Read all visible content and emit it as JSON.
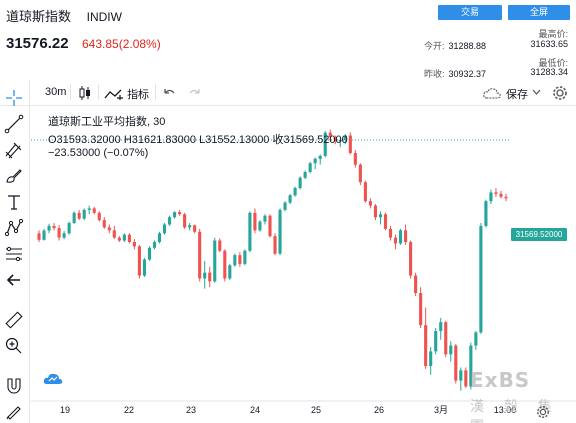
{
  "header": {
    "name": "道琼斯指数",
    "symbol": "INDIW",
    "price": "31576.22",
    "change": "643.85(2.08%)",
    "trade_button": "交易",
    "fullscreen_button": "全屏",
    "stats": {
      "open_label": "今开:",
      "open_value": "31288.88",
      "prev_close_label": "昨收:",
      "prev_close_value": "30932.37",
      "high_label": "最高价:",
      "high_value": "31633.65",
      "low_label": "最低价:",
      "low_value": "31283.34"
    }
  },
  "toolbar": {
    "interval": "30m",
    "indicators_label": "指标",
    "save_label": "保存"
  },
  "legend": {
    "line1": "道琼斯工业平均指数, 30",
    "line2": "O31593.32000  H31621.83000  L31552.13000  收31569.52000",
    "line3": "−23.53000 (−0.07%)"
  },
  "price_tag": "31569.52000",
  "x_labels": [
    "19",
    "22",
    "23",
    "24",
    "25",
    "26",
    "3月",
    "13:00"
  ],
  "watermark": {
    "line1": "ExBS",
    "line2": "漢 穀 集 團"
  },
  "colors": {
    "up": "#26a69a",
    "down": "#ef5350",
    "accent": "#2f8fe8"
  },
  "chart_data": {
    "type": "candlestick",
    "current_price": 31569.52,
    "candles": [
      [
        30929,
        30950,
        30870,
        30885
      ],
      [
        30885,
        30960,
        30880,
        30948
      ],
      [
        30948,
        30995,
        30930,
        30980
      ],
      [
        30980,
        31000,
        30950,
        30965
      ],
      [
        30965,
        30985,
        30880,
        30900
      ],
      [
        30900,
        30945,
        30890,
        30930
      ],
      [
        30930,
        31010,
        30920,
        31000
      ],
      [
        31000,
        31080,
        30995,
        31070
      ],
      [
        31070,
        31090,
        31020,
        31030
      ],
      [
        31030,
        31100,
        31020,
        31090
      ],
      [
        31090,
        31120,
        31060,
        31100
      ],
      [
        31100,
        31110,
        31060,
        31070
      ],
      [
        31070,
        31080,
        31010,
        31020
      ],
      [
        31020,
        31040,
        30960,
        30970
      ],
      [
        30970,
        30990,
        30930,
        30950
      ],
      [
        30950,
        30980,
        30890,
        30900
      ],
      [
        30900,
        30910,
        30870,
        30880
      ],
      [
        30880,
        30930,
        30870,
        30920
      ],
      [
        30920,
        30930,
        30860,
        30870
      ],
      [
        30870,
        30890,
        30820,
        30840
      ],
      [
        30840,
        30850,
        30620,
        30640
      ],
      [
        30640,
        30760,
        30630,
        30750
      ],
      [
        30750,
        30840,
        30740,
        30830
      ],
      [
        30830,
        30880,
        30820,
        30870
      ],
      [
        30870,
        30940,
        30860,
        30930
      ],
      [
        30930,
        31000,
        30920,
        30990
      ],
      [
        30990,
        31050,
        30980,
        31040
      ],
      [
        31040,
        31080,
        31030,
        31075
      ],
      [
        31075,
        31090,
        31050,
        31060
      ],
      [
        31060,
        31070,
        30960,
        30970
      ],
      [
        30970,
        31000,
        30950,
        30985
      ],
      [
        30985,
        30990,
        30930,
        30940
      ],
      [
        30940,
        30960,
        30600,
        30620
      ],
      [
        30620,
        30740,
        30550,
        30660
      ],
      [
        30660,
        30700,
        30560,
        30600
      ],
      [
        30600,
        30900,
        30590,
        30880
      ],
      [
        30880,
        30895,
        30800,
        30810
      ],
      [
        30810,
        30820,
        30600,
        30620
      ],
      [
        30620,
        30720,
        30610,
        30710
      ],
      [
        30710,
        30790,
        30700,
        30780
      ],
      [
        30780,
        30800,
        30700,
        30720
      ],
      [
        30720,
        30820,
        30710,
        30810
      ],
      [
        30810,
        31080,
        30800,
        31070
      ],
      [
        31070,
        31100,
        30930,
        30950
      ],
      [
        30950,
        31020,
        30940,
        31010
      ],
      [
        31010,
        31060,
        30990,
        31050
      ],
      [
        31050,
        31060,
        30900,
        30910
      ],
      [
        30910,
        30930,
        30780,
        30790
      ],
      [
        30790,
        31100,
        30780,
        31090
      ],
      [
        31090,
        31150,
        31080,
        31140
      ],
      [
        31140,
        31200,
        31130,
        31190
      ],
      [
        31190,
        31250,
        31180,
        31240
      ],
      [
        31240,
        31320,
        31230,
        31310
      ],
      [
        31310,
        31360,
        31300,
        31350
      ],
      [
        31350,
        31420,
        31340,
        31410
      ],
      [
        31410,
        31450,
        31370,
        31440
      ],
      [
        31440,
        31470,
        31400,
        31460
      ],
      [
        31460,
        31630,
        31450,
        31620
      ],
      [
        31620,
        31640,
        31560,
        31590
      ],
      [
        31590,
        31600,
        31540,
        31560
      ],
      [
        31560,
        31580,
        31520,
        31570
      ],
      [
        31570,
        31610,
        31540,
        31600
      ],
      [
        31600,
        31620,
        31470,
        31480
      ],
      [
        31480,
        31500,
        31380,
        31400
      ],
      [
        31400,
        31410,
        31260,
        31280
      ],
      [
        31280,
        31290,
        31140,
        31150
      ],
      [
        31150,
        31170,
        31100,
        31120
      ],
      [
        31120,
        31130,
        31020,
        31040
      ],
      [
        31040,
        31080,
        30990,
        31060
      ],
      [
        31060,
        31070,
        30950,
        30960
      ],
      [
        30960,
        30980,
        30880,
        30900
      ],
      [
        30900,
        30920,
        30820,
        30860
      ],
      [
        30860,
        30960,
        30850,
        30950
      ],
      [
        30950,
        30990,
        30850,
        30870
      ],
      [
        30870,
        30880,
        30620,
        30640
      ],
      [
        30640,
        30660,
        30500,
        30520
      ],
      [
        30520,
        30560,
        30280,
        30300
      ],
      [
        30300,
        30420,
        30000,
        30020
      ],
      [
        30020,
        30150,
        29960,
        30120
      ],
      [
        30120,
        30280,
        30100,
        30260
      ],
      [
        30260,
        30350,
        30200,
        30320
      ],
      [
        30320,
        30330,
        30080,
        30100
      ],
      [
        30100,
        30190,
        30050,
        30160
      ],
      [
        30160,
        30170,
        29900,
        29920
      ],
      [
        29920,
        30010,
        29850,
        29990
      ],
      [
        29990,
        30010,
        29870,
        29880
      ],
      [
        29880,
        30180,
        29860,
        30160
      ],
      [
        30160,
        30260,
        30130,
        30250
      ],
      [
        30250,
        31000,
        30240,
        30980
      ],
      [
        30980,
        31160,
        30970,
        31150
      ],
      [
        31150,
        31230,
        31130,
        31210
      ],
      [
        31210,
        31240,
        31180,
        31200
      ],
      [
        31200,
        31220,
        31170,
        31180
      ],
      [
        31180,
        31200,
        31150,
        31170
      ]
    ]
  }
}
